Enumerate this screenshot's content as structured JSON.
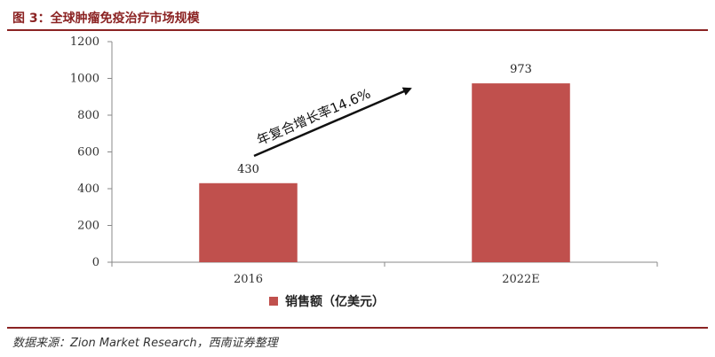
{
  "title": "图 3：全球肿瘤免疫治疗市场规模",
  "source": "数据来源：Zion Market Research，西南证券整理",
  "colors": {
    "bar": "#c0504d",
    "accent": "#8b2323",
    "axis": "#888888"
  },
  "chart_data": {
    "type": "bar",
    "categories": [
      "2016",
      "2022E"
    ],
    "series": [
      {
        "name": "销售额（亿美元）",
        "values": [
          430,
          973
        ]
      }
    ],
    "data_labels": [
      "430",
      "973"
    ],
    "ylim": [
      0,
      1200
    ],
    "yticks": [
      0,
      200,
      400,
      600,
      800,
      1000,
      1200
    ],
    "ytick_labels": [
      "0",
      "200",
      "400",
      "600",
      "800",
      "1000",
      "1200"
    ],
    "xlabel": "",
    "ylabel": "",
    "grid": false,
    "legend_position": "bottom",
    "annotation": "年复合增长率14.6%"
  }
}
